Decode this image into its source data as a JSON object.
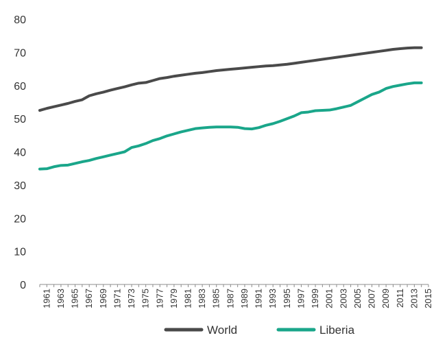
{
  "chart_data": {
    "type": "line",
    "title": "",
    "xlabel": "",
    "ylabel": "",
    "ylim": [
      0,
      80
    ],
    "yticks": [
      0,
      10,
      20,
      30,
      40,
      50,
      60,
      70,
      80
    ],
    "xtick_labels": [
      "1961",
      "1963",
      "1965",
      "1967",
      "1969",
      "1971",
      "1973",
      "1975",
      "1977",
      "1979",
      "1981",
      "1983",
      "1985",
      "1987",
      "1989",
      "1991",
      "1993",
      "1995",
      "1997",
      "1999",
      "2001",
      "2003",
      "2005",
      "2007",
      "2009",
      "2011",
      "2013",
      "2015"
    ],
    "grid": false,
    "legend_position": "bottom",
    "x": [
      1960,
      1961,
      1962,
      1963,
      1964,
      1965,
      1966,
      1967,
      1968,
      1969,
      1970,
      1971,
      1972,
      1973,
      1974,
      1975,
      1976,
      1977,
      1978,
      1979,
      1980,
      1981,
      1982,
      1983,
      1984,
      1985,
      1986,
      1987,
      1988,
      1989,
      1990,
      1991,
      1992,
      1993,
      1994,
      1995,
      1996,
      1997,
      1998,
      1999,
      2000,
      2001,
      2002,
      2003,
      2004,
      2005,
      2006,
      2007,
      2008,
      2009,
      2010,
      2011,
      2012,
      2013,
      2014
    ],
    "series": [
      {
        "name": "World",
        "color": "#4a4a4a",
        "values": [
          52.5,
          53.1,
          53.6,
          54.1,
          54.6,
          55.2,
          55.7,
          56.9,
          57.5,
          58.0,
          58.6,
          59.1,
          59.6,
          60.2,
          60.7,
          60.9,
          61.5,
          62.1,
          62.4,
          62.8,
          63.1,
          63.4,
          63.7,
          63.9,
          64.2,
          64.5,
          64.7,
          64.9,
          65.1,
          65.3,
          65.5,
          65.7,
          65.9,
          66.0,
          66.2,
          66.4,
          66.7,
          67.0,
          67.3,
          67.6,
          67.9,
          68.2,
          68.5,
          68.8,
          69.1,
          69.4,
          69.7,
          70.0,
          70.3,
          70.6,
          70.9,
          71.1,
          71.3,
          71.4,
          71.4
        ]
      },
      {
        "name": "Liberia",
        "color": "#1aa68a",
        "values": [
          34.8,
          34.9,
          35.5,
          35.9,
          36.0,
          36.5,
          37.0,
          37.4,
          38.0,
          38.5,
          39.0,
          39.5,
          40.0,
          41.3,
          41.8,
          42.5,
          43.4,
          44.0,
          44.8,
          45.4,
          46.0,
          46.5,
          47.0,
          47.2,
          47.4,
          47.5,
          47.5,
          47.5,
          47.4,
          47.0,
          46.9,
          47.3,
          48.0,
          48.5,
          49.2,
          50.0,
          50.8,
          51.8,
          52.0,
          52.4,
          52.5,
          52.6,
          53.0,
          53.5,
          54.0,
          55.1,
          56.2,
          57.3,
          58.0,
          59.1,
          59.7,
          60.1,
          60.5,
          60.8,
          60.8
        ]
      }
    ]
  }
}
